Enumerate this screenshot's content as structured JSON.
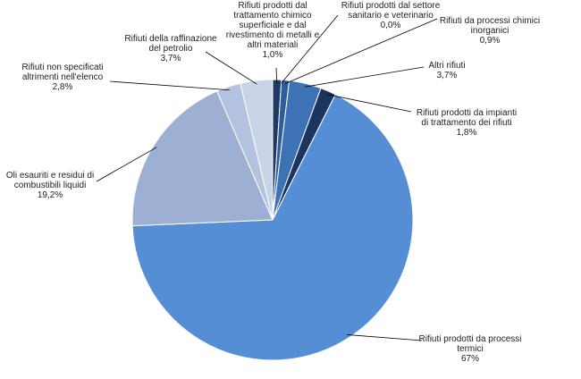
{
  "chart_data": {
    "type": "pie",
    "title": "",
    "legend": "none",
    "slices": [
      {
        "label": [
          "Rifiuti prodotti dal",
          "trattamento chimico",
          "superficiale e dal",
          "rivestimento di metalli e",
          "altri materiali"
        ],
        "value_label": "1,0%",
        "value": 1.0,
        "color": "#1f3864"
      },
      {
        "label": [
          "Rifiuti prodotti dal settore",
          "sanitario e veterinario"
        ],
        "value_label": "0,0%",
        "value": 0.0,
        "color": "#24416f"
      },
      {
        "label": [
          "Rifiuti da processi chimici",
          "inorganici"
        ],
        "value_label": "0,9%",
        "value": 0.9,
        "color": "#2e5d9c"
      },
      {
        "label": [
          "Altri rifiuti"
        ],
        "value_label": "3,7%",
        "value": 3.7,
        "color": "#3d72b4"
      },
      {
        "label": [
          "Rifiuti prodotti da impianti",
          "di trattamento dei rifiuti"
        ],
        "value_label": "1,8%",
        "value": 1.8,
        "color": "#1c355e"
      },
      {
        "label": [
          "Rifiuti prodotti da processi",
          "termici"
        ],
        "value_label": "67%",
        "value": 67.0,
        "color": "#558ed5"
      },
      {
        "label": [
          "Oli esauriti e residui di",
          "combustibili liquidi"
        ],
        "value_label": "19,2%",
        "value": 19.2,
        "color": "#9db0d3"
      },
      {
        "label": [
          "Rifiuti non specificati",
          "altrimenti nell'elenco"
        ],
        "value_label": "2,8%",
        "value": 2.8,
        "color": "#b3c2de"
      },
      {
        "label": [
          "Rifiuti della raffinazione",
          "del petrolio"
        ],
        "value_label": "3,7%",
        "value": 3.7,
        "color": "#c9d3e8"
      }
    ]
  }
}
